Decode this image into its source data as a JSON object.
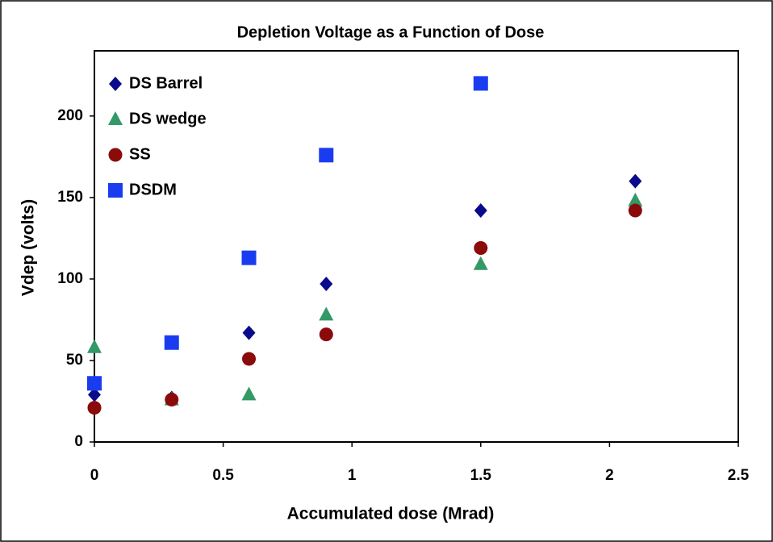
{
  "chart_data": {
    "type": "scatter",
    "title": "Depletion Voltage as a Function of Dose",
    "x_label": "Accumulated dose (Mrad)",
    "y_label": "Vdep (volts)",
    "xlim": [
      0,
      2.5
    ],
    "xticks": [
      0,
      0.5,
      1,
      1.5,
      2,
      2.5
    ],
    "ylim": [
      0,
      240
    ],
    "yticks": [
      0,
      50,
      100,
      150,
      200
    ],
    "legend": "top-left",
    "series": [
      {
        "name": "DS Barrel",
        "color": "#0a0a8c",
        "marker": "diamond",
        "x": [
          0,
          0.3,
          0.6,
          0.9,
          1.5,
          2.1
        ],
        "values": [
          29,
          27,
          67,
          97,
          142,
          160
        ]
      },
      {
        "name": "DS wedge",
        "color": "#339966",
        "marker": "triangle",
        "x": [
          0,
          0.3,
          0.6,
          0.9,
          1.5,
          2.1
        ],
        "values": [
          58,
          26,
          29,
          78,
          109,
          148
        ]
      },
      {
        "name": "SS",
        "color": "#8b0a0a",
        "marker": "circle",
        "x": [
          0,
          0.3,
          0.6,
          0.9,
          1.5,
          2.1
        ],
        "values": [
          21,
          26,
          51,
          66,
          119,
          142
        ]
      },
      {
        "name": "DSDM",
        "color": "#1a3cf0",
        "marker": "square",
        "x": [
          0,
          0.3,
          0.6,
          0.9,
          1.5
        ],
        "values": [
          36,
          61,
          113,
          176,
          220
        ]
      }
    ]
  }
}
